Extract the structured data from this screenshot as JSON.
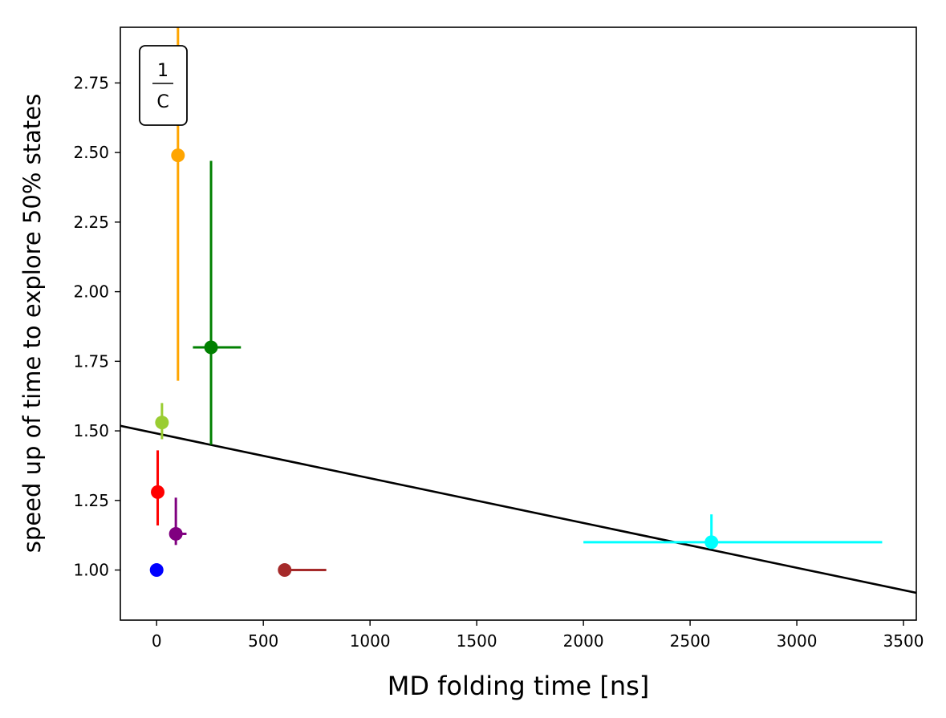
{
  "chart_data": {
    "type": "scatter",
    "xlabel": "MD folding time [ns]",
    "ylabel": "speed up of time to explore 50% states",
    "xlim": [
      -170,
      3560
    ],
    "ylim": [
      0.82,
      2.95
    ],
    "xticks": [
      0,
      500,
      1000,
      1500,
      2000,
      2500,
      3000,
      3500
    ],
    "yticks": [
      1.0,
      1.25,
      1.5,
      1.75,
      2.0,
      2.25,
      2.5,
      2.75
    ],
    "grid": false,
    "inset_label": {
      "numerator": "1",
      "denominator": "C",
      "position": "top-left"
    },
    "points": [
      {
        "x": 0,
        "y": 1.0,
        "color": "#0000ff",
        "xerr": null,
        "yerr": null
      },
      {
        "x": 5,
        "y": 1.28,
        "color": "#ff0000",
        "xerr": null,
        "yerr": [
          1.16,
          1.43
        ]
      },
      {
        "x": 25,
        "y": 1.53,
        "color": "#9acd32",
        "xerr": null,
        "yerr": [
          1.47,
          1.6
        ]
      },
      {
        "x": 90,
        "y": 1.13,
        "color": "#800080",
        "xerr": [
          90,
          140
        ],
        "yerr": [
          1.09,
          1.26
        ]
      },
      {
        "x": 100,
        "y": 2.49,
        "color": "#ffa500",
        "xerr": null,
        "yerr": [
          1.68,
          2.95
        ]
      },
      {
        "x": 255,
        "y": 1.8,
        "color": "#008000",
        "xerr": [
          170,
          395
        ],
        "yerr": [
          1.45,
          2.47
        ]
      },
      {
        "x": 600,
        "y": 1.0,
        "color": "#a52a2a",
        "xerr": [
          600,
          795
        ],
        "yerr": null
      },
      {
        "x": 2600,
        "y": 1.1,
        "color": "#00ffff",
        "xerr": [
          2000,
          3400
        ],
        "yerr": [
          1.1,
          1.2
        ]
      }
    ],
    "fit_line": {
      "color": "#000000",
      "x": [
        -170,
        3560
      ],
      "y": [
        1.518,
        0.918
      ]
    }
  }
}
